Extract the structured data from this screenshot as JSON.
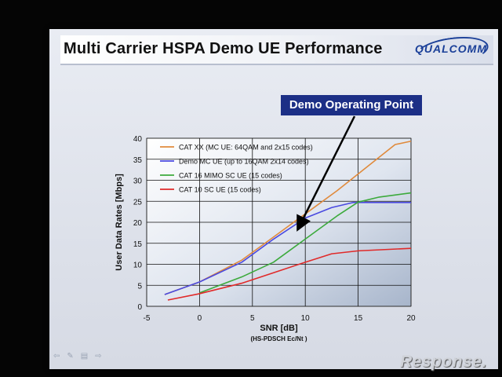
{
  "slide": {
    "title": "Multi Carrier HSPA Demo UE Performance",
    "logo_text": "QUALCOMM",
    "callout": "Demo Operating Point",
    "watermark": "Response."
  },
  "chart_data": {
    "type": "line",
    "xlabel": "SNR [dB]",
    "xlabel_sub": "(HS-PDSCH Ec/Nt )",
    "ylabel": "User Data Rates [Mbps]",
    "xlim": [
      -5,
      20
    ],
    "ylim": [
      0,
      40
    ],
    "xticks": [
      -5,
      0,
      5,
      10,
      15,
      20
    ],
    "yticks": [
      0,
      5,
      10,
      15,
      20,
      25,
      30,
      35,
      40
    ],
    "grid": true,
    "legend_position": "top-left",
    "annotation": {
      "text": "Demo Operating Point",
      "x": 9.5,
      "y": 19
    },
    "series": [
      {
        "name": "CAT XX (MC UE: 64QAM and 2x15 codes)",
        "color": "#e08a3c",
        "x": [
          -3.3,
          0,
          4,
          7,
          10,
          13,
          16,
          18.5,
          20
        ],
        "y": [
          2.8,
          5.8,
          11,
          16.5,
          22,
          27.5,
          33.5,
          38.5,
          39.3
        ]
      },
      {
        "name": "Demo MC UE (up to 16QAM 2x14 codes)",
        "color": "#4a4ae0",
        "x": [
          -3.3,
          0,
          4,
          7,
          10,
          12.5,
          14.5,
          17,
          20
        ],
        "y": [
          2.8,
          5.8,
          10.5,
          16,
          21,
          23.5,
          24.7,
          24.7,
          24.7
        ]
      },
      {
        "name": "CAT 16 MIMO SC UE (15 codes)",
        "color": "#3caa3c",
        "x": [
          0,
          4,
          7,
          10,
          13,
          15,
          17,
          20
        ],
        "y": [
          3.2,
          7,
          10.5,
          16,
          21.5,
          24.8,
          26,
          27
        ]
      },
      {
        "name": "CAT 10 SC UE (15 codes)",
        "color": "#e02a2a",
        "x": [
          -3,
          0,
          4,
          7,
          10,
          12.5,
          15,
          20
        ],
        "y": [
          1.5,
          3,
          5.5,
          8,
          10.5,
          12.5,
          13.2,
          13.8
        ]
      }
    ]
  },
  "footer": {
    "nav_icons": [
      "back-arrow-icon",
      "pen-icon",
      "menu-icon",
      "forward-arrow-icon"
    ]
  }
}
